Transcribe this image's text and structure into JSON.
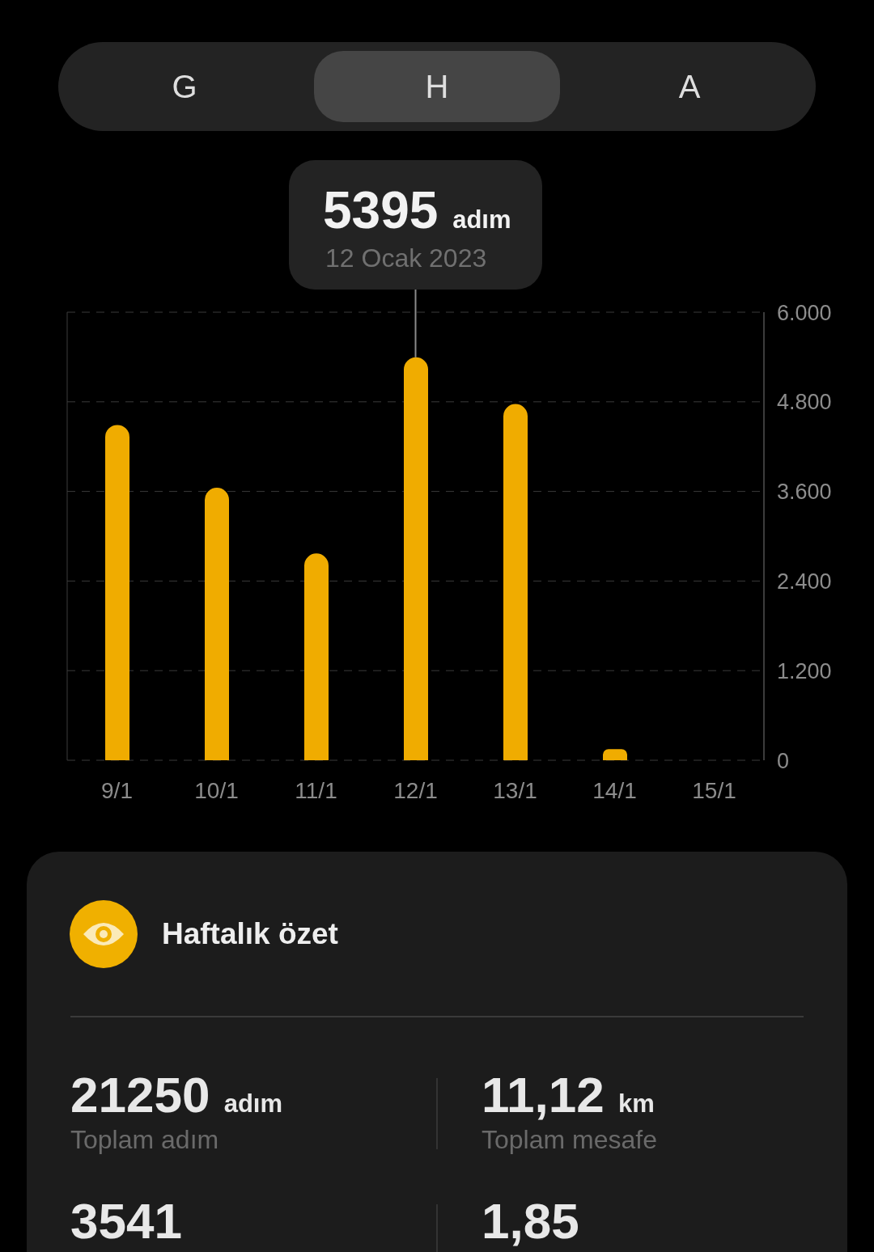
{
  "chart_data": [
    {
      "type": "other",
      "annotations": [
        "G",
        "H",
        "A"
      ]
    },
    {
      "type": "bar",
      "categories": [
        "9/1",
        "10/1",
        "11/1",
        "12/1",
        "13/1",
        "14/1",
        "15/1"
      ],
      "values": [
        4490,
        3650,
        2770,
        5395,
        4770,
        150,
        null
      ],
      "color": "#f0ac00",
      "ylim": [
        0,
        6000
      ],
      "yticks": [
        0,
        {
          "value": 1200,
          "label": "1.200"
        },
        {
          "value": 2400,
          "label": "2.400"
        },
        {
          "value": 3600,
          "label": "3.600"
        },
        {
          "value": 4800,
          "label": "4.800"
        },
        {
          "value": 6000,
          "label": "6.000"
        }
      ],
      "grid": "y",
      "annotations": [
        {
          "text": "5395 adım\n12 Ocak 2023",
          "x": "12/1",
          "y": 5395
        }
      ]
    },
    {
      "type": "other",
      "title": "Haftalık özet",
      "annotations": [
        "21250 adım\nToplam adım",
        "11,12 km\nToplam mesafe",
        "3541",
        "1,85"
      ]
    }
  ]
}
